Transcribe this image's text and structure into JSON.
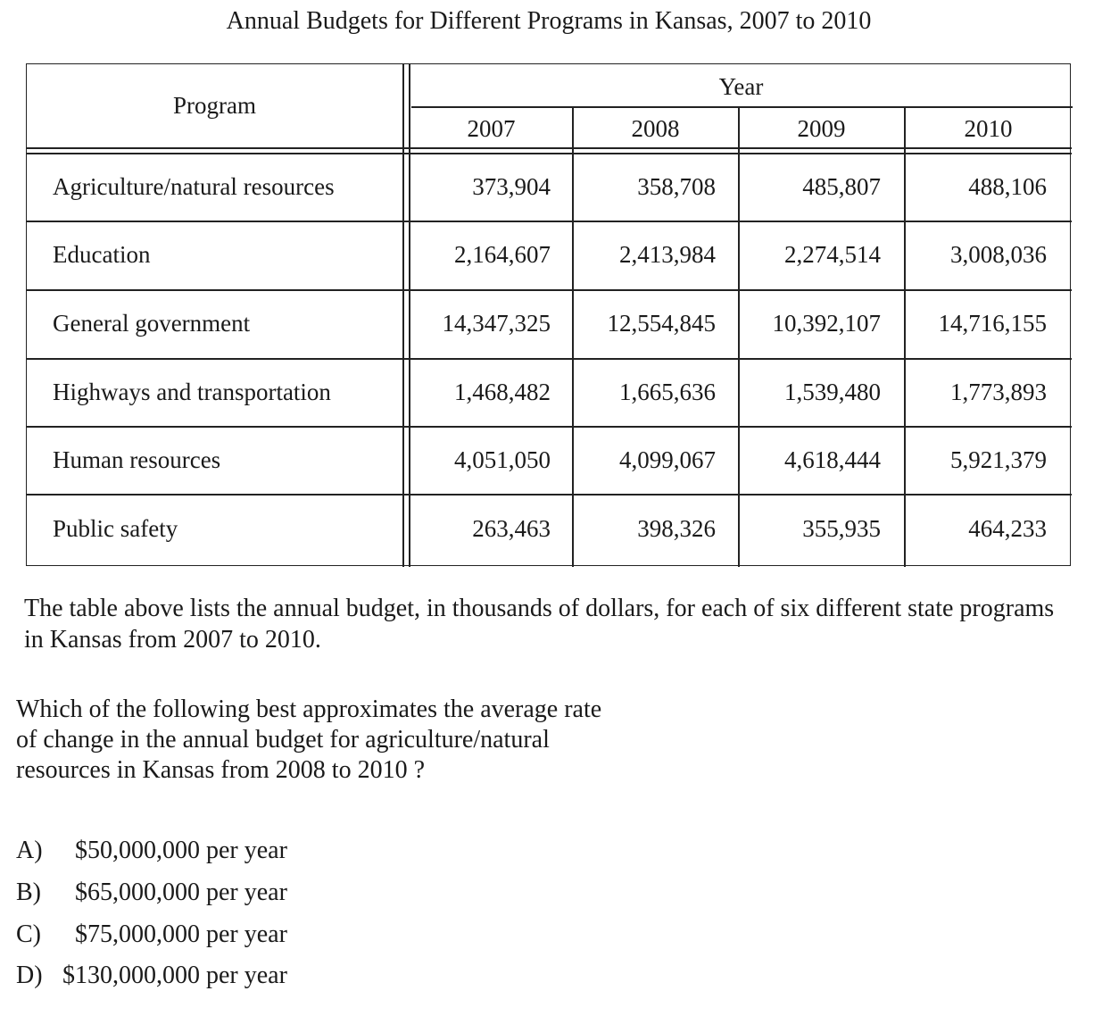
{
  "title": "Annual Budgets for Different Programs in Kansas, 2007 to 2010",
  "table": {
    "program_header": "Program",
    "year_header": "Year",
    "years": [
      "2007",
      "2008",
      "2009",
      "2010"
    ],
    "rows": [
      {
        "program": "Agriculture/natural resources",
        "values": [
          "373,904",
          "358,708",
          "485,807",
          "488,106"
        ]
      },
      {
        "program": "Education",
        "values": [
          "2,164,607",
          "2,413,984",
          "2,274,514",
          "3,008,036"
        ]
      },
      {
        "program": "General government",
        "values": [
          "14,347,325",
          "12,554,845",
          "10,392,107",
          "14,716,155"
        ]
      },
      {
        "program": "Highways and transportation",
        "values": [
          "1,468,482",
          "1,665,636",
          "1,539,480",
          "1,773,893"
        ]
      },
      {
        "program": "Human resources",
        "values": [
          "4,051,050",
          "4,099,067",
          "4,618,444",
          "5,921,379"
        ]
      },
      {
        "program": "Public safety",
        "values": [
          "263,463",
          "398,326",
          "355,935",
          "464,233"
        ]
      }
    ]
  },
  "description": "The table above lists the annual budget, in thousands of dollars, for each of six different state programs in Kansas from 2007 to 2010.",
  "question": "Which of the following best approximates the average rate of change in the annual budget for agriculture/natural resources in Kansas from 2008 to 2010 ?",
  "choices": [
    {
      "letter": "A)",
      "text": "$50,000,000 per year"
    },
    {
      "letter": "B)",
      "text": "$65,000,000 per year"
    },
    {
      "letter": "C)",
      "text": "$75,000,000 per year"
    },
    {
      "letter": "D)",
      "text": "$130,000,000 per year"
    }
  ]
}
